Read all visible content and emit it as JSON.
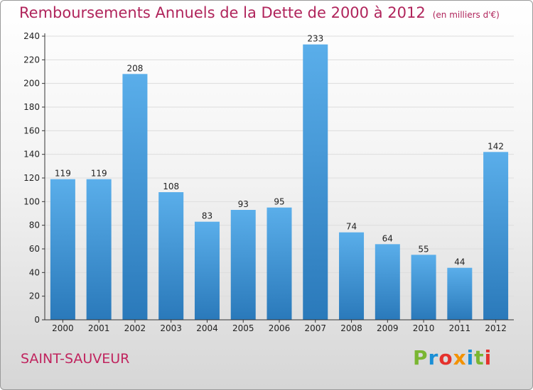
{
  "title": "Remboursements Annuels de la Dette de 2000 à 2012",
  "unit_note": "(en milliers d'€)",
  "city": "SAINT-SAUVEUR",
  "logo_text": "Proxiti",
  "colors": {
    "title": "#b0245b",
    "bar_light": "#5aaeea",
    "bar_dark": "#2a79ba",
    "axis": "#333333",
    "grid": "#dddddd",
    "logo": [
      "#7ab632",
      "#1a8fd6",
      "#e5322d",
      "#f39200",
      "#1a8fd6",
      "#7ab632",
      "#e5322d"
    ]
  },
  "chart_data": {
    "type": "bar",
    "categories": [
      "2000",
      "2001",
      "2002",
      "2003",
      "2004",
      "2005",
      "2006",
      "2007",
      "2008",
      "2009",
      "2010",
      "2011",
      "2012"
    ],
    "values": [
      119,
      119,
      208,
      108,
      83,
      93,
      95,
      233,
      74,
      64,
      55,
      44,
      142
    ],
    "ylim": [
      0,
      240
    ],
    "yticks": [
      0,
      20,
      40,
      60,
      80,
      100,
      120,
      140,
      160,
      180,
      200,
      220,
      240
    ],
    "xlabel": "",
    "ylabel": "",
    "grid": true,
    "data_labels": true
  }
}
